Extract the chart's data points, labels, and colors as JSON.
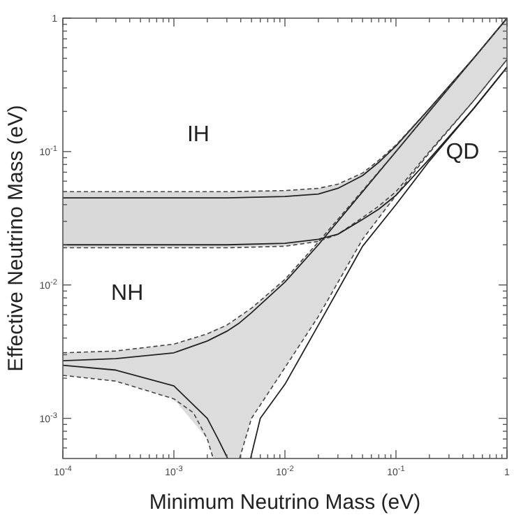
{
  "chart_data": {
    "type": "line",
    "xlabel": "Minimum Neutrino Mass (eV)",
    "ylabel": "Effective Neutrino Mass (eV)",
    "log": "xy",
    "grid": false,
    "xlim": [
      0.0001,
      1
    ],
    "ylim": [
      0.0005,
      1
    ],
    "xticks": [
      {
        "value": 0.0001,
        "label": "10$^{-4}$"
      },
      {
        "value": 0.0002,
        "label": null
      },
      {
        "value": 0.0003,
        "label": null
      },
      {
        "value": 0.0004,
        "label": null
      },
      {
        "value": 0.0005,
        "label": null
      },
      {
        "value": 0.0006,
        "label": null
      },
      {
        "value": 0.0007,
        "label": null
      },
      {
        "value": 0.0008,
        "label": null
      },
      {
        "value": 0.0009,
        "label": null
      },
      {
        "value": 0.001,
        "label": "10$^{-3}$"
      },
      {
        "value": 0.002,
        "label": null
      },
      {
        "value": 0.003,
        "label": null
      },
      {
        "value": 0.004,
        "label": null
      },
      {
        "value": 0.005,
        "label": null
      },
      {
        "value": 0.006,
        "label": null
      },
      {
        "value": 0.007,
        "label": null
      },
      {
        "value": 0.008,
        "label": null
      },
      {
        "value": 0.009,
        "label": null
      },
      {
        "value": 0.01,
        "label": "10$^{-2}$"
      },
      {
        "value": 0.02,
        "label": null
      },
      {
        "value": 0.03,
        "label": null
      },
      {
        "value": 0.04,
        "label": null
      },
      {
        "value": 0.05,
        "label": null
      },
      {
        "value": 0.06,
        "label": null
      },
      {
        "value": 0.07,
        "label": null
      },
      {
        "value": 0.08,
        "label": null
      },
      {
        "value": 0.09,
        "label": null
      },
      {
        "value": 0.1,
        "label": "10$^{-1}$"
      },
      {
        "value": 0.2,
        "label": null
      },
      {
        "value": 0.3,
        "label": null
      },
      {
        "value": 0.4,
        "label": null
      },
      {
        "value": 0.5,
        "label": null
      },
      {
        "value": 0.6,
        "label": null
      },
      {
        "value": 0.7,
        "label": null
      },
      {
        "value": 0.8,
        "label": null
      },
      {
        "value": 0.9,
        "label": null
      },
      1
    ],
    "yticks": [
      {
        "value": 0.0006,
        "label": null
      },
      {
        "value": 0.0007,
        "label": null
      },
      {
        "value": 0.0008,
        "label": null
      },
      {
        "value": 0.0009,
        "label": null
      },
      {
        "value": 0.001,
        "label": "10$^{-3}$"
      },
      {
        "value": 0.002,
        "label": null
      },
      {
        "value": 0.003,
        "label": null
      },
      {
        "value": 0.004,
        "label": null
      },
      {
        "value": 0.005,
        "label": null
      },
      {
        "value": 0.006,
        "label": null
      },
      {
        "value": 0.007,
        "label": null
      },
      {
        "value": 0.008,
        "label": null
      },
      {
        "value": 0.009,
        "label": null
      },
      {
        "value": 0.01,
        "label": "10$^{-2}$"
      },
      {
        "value": 0.02,
        "label": null
      },
      {
        "value": 0.03,
        "label": null
      },
      {
        "value": 0.04,
        "label": null
      },
      {
        "value": 0.05,
        "label": null
      },
      {
        "value": 0.06,
        "label": null
      },
      {
        "value": 0.07,
        "label": null
      },
      {
        "value": 0.08,
        "label": null
      },
      {
        "value": 0.09,
        "label": null
      },
      {
        "value": 0.1,
        "label": "10$^{-1}$"
      },
      {
        "value": 0.2,
        "label": null
      },
      {
        "value": 0.3,
        "label": null
      },
      {
        "value": 0.4,
        "label": null
      },
      {
        "value": 0.5,
        "label": null
      },
      {
        "value": 0.6,
        "label": null
      },
      {
        "value": 0.7,
        "label": null
      },
      {
        "value": 0.8,
        "label": null
      },
      {
        "value": 0.9,
        "label": null
      },
      1
    ],
    "annotations": [
      "IH",
      "NH",
      "QD"
    ],
    "series": [
      {
        "color": "#222222",
        "line_style": "solid",
        "x": [
          0.0001,
          0.001,
          0.003,
          0.01,
          0.02,
          0.03,
          0.05,
          0.07,
          0.1,
          0.2,
          0.5,
          1
        ],
        "values": [
          0.045,
          0.045,
          0.045,
          0.046,
          0.048,
          0.053,
          0.066,
          0.083,
          0.11,
          0.21,
          0.5,
          1.0
        ],
        "upper": [
          0.05,
          0.05,
          0.05,
          0.051,
          0.053,
          0.057,
          0.069,
          0.086,
          0.112,
          0.21,
          0.5,
          1.0
        ],
        "lower": [
          0.019,
          0.019,
          0.019,
          0.0195,
          0.0212,
          0.024,
          0.032,
          0.039,
          0.05,
          0.1,
          0.24,
          0.49
        ]
      },
      {
        "color": "#222222",
        "line_style": "solid",
        "x": [
          0.0001,
          0.0003,
          0.001,
          0.002,
          0.00226,
          0.003,
          0.0039,
          0.005,
          0.01,
          0.02,
          0.05,
          0.1,
          0.2,
          0.5,
          1
        ],
        "values": [
          0.0027,
          0.0028,
          0.0031,
          0.0038,
          0.004,
          0.0045,
          0.0052,
          0.0062,
          0.0105,
          0.02,
          0.05,
          0.1,
          0.2,
          0.5,
          1.0
        ],
        "upper": [
          0.0031,
          0.0032,
          0.0036,
          0.0043,
          0.0046,
          0.005,
          0.0058,
          0.0067,
          0.011,
          0.021,
          0.051,
          0.1,
          0.2,
          0.5,
          1.0
        ],
        "lower": [
          0.0021,
          0.0019,
          0.0014,
          0.0007,
          0.0005,
          0.0005,
          0.0005,
          0.001,
          0.0024,
          0.0058,
          0.022,
          0.047,
          0.098,
          0.24,
          0.49
        ]
      },
      {
        "color": "#444444",
        "line_style": "dashed",
        "x": [
          0.0001,
          0.001,
          0.003,
          0.01,
          0.02,
          0.03,
          0.05,
          0.07,
          0.1,
          0.2,
          0.5,
          1
        ],
        "values": [
          0.05,
          0.05,
          0.05,
          0.051,
          0.053,
          0.057,
          0.069,
          0.086,
          0.112,
          0.21,
          0.5,
          1.0
        ]
      },
      {
        "color": "#444444",
        "line_style": "dashed",
        "x": [
          0.0001,
          0.001,
          0.003,
          0.01,
          0.02,
          0.03,
          0.05,
          0.07,
          0.1,
          0.2,
          0.5,
          1
        ],
        "values": [
          0.019,
          0.019,
          0.019,
          0.0195,
          0.0212,
          0.024,
          0.032,
          0.039,
          0.05,
          0.1,
          0.24,
          0.49
        ]
      },
      {
        "color": "#444444",
        "line_style": "dashed",
        "x": [
          0.0001,
          0.0003,
          0.001,
          0.002,
          0.003,
          0.005,
          0.01,
          0.02,
          0.05,
          0.1,
          0.2,
          0.5,
          1
        ],
        "values": [
          0.0031,
          0.0032,
          0.0036,
          0.0043,
          0.005,
          0.0067,
          0.011,
          0.021,
          0.051,
          0.1,
          0.2,
          0.5,
          1.0
        ]
      },
      {
        "color": "#444444",
        "line_style": "dashed",
        "x": [
          0.0001,
          0.0003,
          0.001,
          0.0015,
          0.002,
          0.00226
        ],
        "values": [
          0.0021,
          0.0019,
          0.0014,
          0.0011,
          0.0007,
          0.0005
        ]
      },
      {
        "color": "#444444",
        "line_style": "dashed",
        "x": [
          0.0039,
          0.005,
          0.01,
          0.02,
          0.05,
          0.1,
          0.2,
          0.5,
          1
        ],
        "values": [
          0.0005,
          0.001,
          0.0024,
          0.0058,
          0.022,
          0.047,
          0.098,
          0.24,
          0.49
        ]
      },
      {
        "color": "#222222",
        "line_style": "solid",
        "x": [
          0.0001,
          0.001,
          0.003,
          0.01,
          0.02,
          0.03,
          0.05,
          0.07,
          0.1,
          0.2,
          0.5,
          1
        ],
        "values": [
          0.02,
          0.02,
          0.02,
          0.0205,
          0.022,
          0.024,
          0.031,
          0.037,
          0.047,
          0.088,
          0.21,
          0.43
        ]
      },
      {
        "color": "#222222",
        "line_style": "solid",
        "x": [
          0.0001,
          0.0003,
          0.001,
          0.002,
          0.0025,
          0.00305
        ],
        "values": [
          0.0025,
          0.0023,
          0.00175,
          0.001,
          0.0007,
          0.0005
        ]
      },
      {
        "color": "#222222",
        "line_style": "solid",
        "x": [
          0.0049,
          0.006,
          0.01,
          0.02,
          0.05,
          0.1,
          0.2,
          0.5,
          1
        ],
        "values": [
          0.0005,
          0.001,
          0.0018,
          0.005,
          0.0195,
          0.04,
          0.085,
          0.21,
          0.43
        ]
      }
    ]
  }
}
